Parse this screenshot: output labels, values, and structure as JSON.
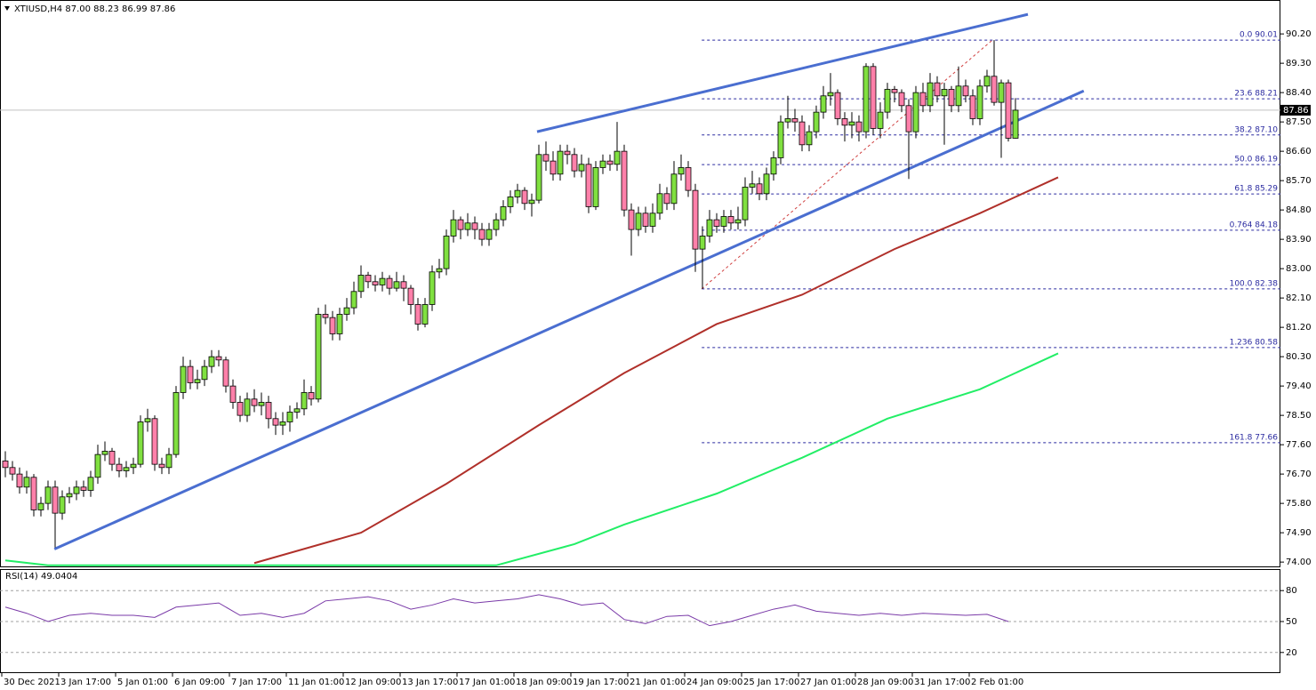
{
  "chart_data": {
    "type": "candlestick",
    "title": "XTIUSD,H4  87.00 88.23 86.99 87.86",
    "bull_color": "#80e040",
    "bear_color": "#ff80aa",
    "ylim": [
      73.84,
      91.24
    ],
    "yticks": [
      {
        "value": 90.2,
        "label": "90.20"
      },
      {
        "value": 89.3,
        "label": "89.30"
      },
      {
        "value": 88.4,
        "label": "88.40"
      },
      {
        "value": 87.5,
        "label": "87.50"
      },
      {
        "value": 86.6,
        "label": "86.60"
      },
      {
        "value": 85.7,
        "label": "85.70"
      },
      {
        "value": 84.8,
        "label": "84.80"
      },
      {
        "value": 83.9,
        "label": "83.90"
      },
      {
        "value": 83.0,
        "label": "83.00"
      },
      {
        "value": 82.1,
        "label": "82.10"
      },
      {
        "value": 81.2,
        "label": "81.20"
      },
      {
        "value": 80.3,
        "label": "80.30"
      },
      {
        "value": 79.4,
        "label": "79.40"
      },
      {
        "value": 78.5,
        "label": "78.50"
      },
      {
        "value": 77.6,
        "label": "77.60"
      },
      {
        "value": 76.7,
        "label": "76.70"
      },
      {
        "value": 75.8,
        "label": "75.80"
      },
      {
        "value": 74.9,
        "label": "74.90"
      },
      {
        "value": 74.0,
        "label": "74.00"
      }
    ],
    "last_price": 87.86,
    "xticks": [
      {
        "value": 0,
        "label": "30 Dec 2021"
      },
      {
        "value": 8,
        "label": "3 Jan 17:00"
      },
      {
        "value": 16,
        "label": "5 Jan 01:00"
      },
      {
        "value": 24,
        "label": "6 Jan 09:00"
      },
      {
        "value": 32,
        "label": "7 Jan 17:00"
      },
      {
        "value": 40,
        "label": "11 Jan 01:00"
      },
      {
        "value": 48,
        "label": "12 Jan 09:00"
      },
      {
        "value": 56,
        "label": "13 Jan 17:00"
      },
      {
        "value": 64,
        "label": "17 Jan 01:00"
      },
      {
        "value": 72,
        "label": "18 Jan 09:00"
      },
      {
        "value": 80,
        "label": "19 Jan 17:00"
      },
      {
        "value": 88,
        "label": "21 Jan 01:00"
      },
      {
        "value": 96,
        "label": "24 Jan 09:00"
      },
      {
        "value": 104,
        "label": "25 Jan 17:00"
      },
      {
        "value": 112,
        "label": "27 Jan 01:00"
      },
      {
        "value": 120,
        "label": "28 Jan 09:00"
      },
      {
        "value": 128,
        "label": "31 Jan 17:00"
      },
      {
        "value": 136,
        "label": "2 Feb 01:00"
      }
    ],
    "candles": [
      [
        77.1,
        77.4,
        76.6,
        76.9
      ],
      [
        76.9,
        77.1,
        76.5,
        76.7
      ],
      [
        76.7,
        76.9,
        76.1,
        76.3
      ],
      [
        76.3,
        76.8,
        76.1,
        76.6
      ],
      [
        76.6,
        76.7,
        75.4,
        75.6
      ],
      [
        75.6,
        76.0,
        75.4,
        75.8
      ],
      [
        75.8,
        76.5,
        75.6,
        76.3
      ],
      [
        76.3,
        76.5,
        74.45,
        75.5
      ],
      [
        75.5,
        76.2,
        75.3,
        76.0
      ],
      [
        76.0,
        76.3,
        75.8,
        76.1
      ],
      [
        76.1,
        76.5,
        75.9,
        76.3
      ],
      [
        76.3,
        76.5,
        76.0,
        76.2
      ],
      [
        76.2,
        76.8,
        76.0,
        76.6
      ],
      [
        76.6,
        77.6,
        76.4,
        77.3
      ],
      [
        77.3,
        77.7,
        77.1,
        77.4
      ],
      [
        77.4,
        77.5,
        76.8,
        77.0
      ],
      [
        77.0,
        77.2,
        76.6,
        76.8
      ],
      [
        76.8,
        77.1,
        76.6,
        76.9
      ],
      [
        76.9,
        77.2,
        76.7,
        77.0
      ],
      [
        77.0,
        78.5,
        76.9,
        78.3
      ],
      [
        78.3,
        78.7,
        78.0,
        78.4
      ],
      [
        78.4,
        78.5,
        76.8,
        77.0
      ],
      [
        77.0,
        77.2,
        76.7,
        76.9
      ],
      [
        76.9,
        77.5,
        76.7,
        77.3
      ],
      [
        77.3,
        79.4,
        77.2,
        79.2
      ],
      [
        79.2,
        80.3,
        79.0,
        80.0
      ],
      [
        80.0,
        80.2,
        79.3,
        79.5
      ],
      [
        79.5,
        79.9,
        79.3,
        79.6
      ],
      [
        79.6,
        80.2,
        79.4,
        80.0
      ],
      [
        80.0,
        80.5,
        79.8,
        80.3
      ],
      [
        80.3,
        80.5,
        80.0,
        80.2
      ],
      [
        80.2,
        80.3,
        79.2,
        79.4
      ],
      [
        79.4,
        79.6,
        78.7,
        78.9
      ],
      [
        78.9,
        79.1,
        78.3,
        78.5
      ],
      [
        78.5,
        79.2,
        78.3,
        79.0
      ],
      [
        79.0,
        79.3,
        78.6,
        78.8
      ],
      [
        78.8,
        79.2,
        78.5,
        78.9
      ],
      [
        78.9,
        79.1,
        78.1,
        78.4
      ],
      [
        78.4,
        78.6,
        77.9,
        78.2
      ],
      [
        78.2,
        78.6,
        77.9,
        78.3
      ],
      [
        78.3,
        78.8,
        78.0,
        78.6
      ],
      [
        78.6,
        78.9,
        78.4,
        78.7
      ],
      [
        78.7,
        79.6,
        78.5,
        79.2
      ],
      [
        79.2,
        79.4,
        78.8,
        79.0
      ],
      [
        79.0,
        81.8,
        78.9,
        81.6
      ],
      [
        81.6,
        81.9,
        81.3,
        81.5
      ],
      [
        81.5,
        81.7,
        80.8,
        81.0
      ],
      [
        81.0,
        81.8,
        80.8,
        81.6
      ],
      [
        81.6,
        82.1,
        81.4,
        81.8
      ],
      [
        81.8,
        82.6,
        81.6,
        82.3
      ],
      [
        82.3,
        83.1,
        82.1,
        82.8
      ],
      [
        82.8,
        82.9,
        82.4,
        82.6
      ],
      [
        82.6,
        82.8,
        82.3,
        82.5
      ],
      [
        82.5,
        82.9,
        82.3,
        82.7
      ],
      [
        82.7,
        82.8,
        82.2,
        82.4
      ],
      [
        82.4,
        82.9,
        82.3,
        82.6
      ],
      [
        82.6,
        82.8,
        82.0,
        82.4
      ],
      [
        82.4,
        82.5,
        81.6,
        81.9
      ],
      [
        81.9,
        82.1,
        81.1,
        81.3
      ],
      [
        81.3,
        82.1,
        81.2,
        81.9
      ],
      [
        81.9,
        83.1,
        81.7,
        82.9
      ],
      [
        82.9,
        83.3,
        82.7,
        83.0
      ],
      [
        83.0,
        84.2,
        82.8,
        84.0
      ],
      [
        84.0,
        84.8,
        83.8,
        84.5
      ],
      [
        84.5,
        84.6,
        83.9,
        84.2
      ],
      [
        84.2,
        84.7,
        84.0,
        84.4
      ],
      [
        84.4,
        84.6,
        83.9,
        84.2
      ],
      [
        84.2,
        84.4,
        83.7,
        83.9
      ],
      [
        83.9,
        84.4,
        83.7,
        84.2
      ],
      [
        84.2,
        84.7,
        84.0,
        84.5
      ],
      [
        84.5,
        85.1,
        84.3,
        84.9
      ],
      [
        84.9,
        85.4,
        84.7,
        85.2
      ],
      [
        85.2,
        85.6,
        85.0,
        85.4
      ],
      [
        85.4,
        85.5,
        84.8,
        85.0
      ],
      [
        85.0,
        85.3,
        84.6,
        85.1
      ],
      [
        85.1,
        86.8,
        85.0,
        86.5
      ],
      [
        86.5,
        86.9,
        86.0,
        86.3
      ],
      [
        86.3,
        86.6,
        85.7,
        85.9
      ],
      [
        85.9,
        86.8,
        85.7,
        86.6
      ],
      [
        86.6,
        86.8,
        86.2,
        86.5
      ],
      [
        86.5,
        86.7,
        85.8,
        86.0
      ],
      [
        86.0,
        86.5,
        85.8,
        86.2
      ],
      [
        86.2,
        86.4,
        84.7,
        84.9
      ],
      [
        84.9,
        86.3,
        84.8,
        86.1
      ],
      [
        86.1,
        86.5,
        85.9,
        86.3
      ],
      [
        86.3,
        86.5,
        86.0,
        86.2
      ],
      [
        86.2,
        87.5,
        86.0,
        86.6
      ],
      [
        86.6,
        86.8,
        84.6,
        84.8
      ],
      [
        84.8,
        85.0,
        83.4,
        84.2
      ],
      [
        84.2,
        84.9,
        84.0,
        84.7
      ],
      [
        84.7,
        84.9,
        84.1,
        84.3
      ],
      [
        84.3,
        85.0,
        84.1,
        84.7
      ],
      [
        84.7,
        85.6,
        84.5,
        85.3
      ],
      [
        85.3,
        85.5,
        84.8,
        85.0
      ],
      [
        85.0,
        86.3,
        84.8,
        85.9
      ],
      [
        85.9,
        86.5,
        85.7,
        86.1
      ],
      [
        86.1,
        86.3,
        85.2,
        85.4
      ],
      [
        85.4,
        85.6,
        82.9,
        83.6
      ],
      [
        83.6,
        84.3,
        82.38,
        84.0
      ],
      [
        84.0,
        84.8,
        83.8,
        84.5
      ],
      [
        84.5,
        84.7,
        84.1,
        84.3
      ],
      [
        84.3,
        84.8,
        84.1,
        84.6
      ],
      [
        84.6,
        84.8,
        84.2,
        84.4
      ],
      [
        84.4,
        84.9,
        84.2,
        84.5
      ],
      [
        84.5,
        85.8,
        84.3,
        85.5
      ],
      [
        85.5,
        86.0,
        85.3,
        85.6
      ],
      [
        85.6,
        85.8,
        85.1,
        85.3
      ],
      [
        85.3,
        86.1,
        85.1,
        85.9
      ],
      [
        85.9,
        86.6,
        85.7,
        86.4
      ],
      [
        86.4,
        87.7,
        86.2,
        87.5
      ],
      [
        87.5,
        88.3,
        87.3,
        87.6
      ],
      [
        87.6,
        87.9,
        87.2,
        87.5
      ],
      [
        87.5,
        87.7,
        86.6,
        86.8
      ],
      [
        86.8,
        87.4,
        86.6,
        87.2
      ],
      [
        87.2,
        88.0,
        87.0,
        87.8
      ],
      [
        87.8,
        88.6,
        87.6,
        88.3
      ],
      [
        88.3,
        89.0,
        88.0,
        88.4
      ],
      [
        88.4,
        88.5,
        87.4,
        87.6
      ],
      [
        87.6,
        87.8,
        86.9,
        87.4
      ],
      [
        87.4,
        87.8,
        87.0,
        87.5
      ],
      [
        87.5,
        87.7,
        86.9,
        87.2
      ],
      [
        87.2,
        89.3,
        87.0,
        89.2
      ],
      [
        89.2,
        89.3,
        87.1,
        87.3
      ],
      [
        87.3,
        88.1,
        87.0,
        87.8
      ],
      [
        87.8,
        88.7,
        87.6,
        88.5
      ],
      [
        88.5,
        88.6,
        88.1,
        88.4
      ],
      [
        88.4,
        88.5,
        87.8,
        88.0
      ],
      [
        88.0,
        88.2,
        85.75,
        87.2
      ],
      [
        87.2,
        88.6,
        87.0,
        88.4
      ],
      [
        88.4,
        88.7,
        87.8,
        88.0
      ],
      [
        88.0,
        89.0,
        87.8,
        88.7
      ],
      [
        88.7,
        88.9,
        88.1,
        88.3
      ],
      [
        88.3,
        88.7,
        86.8,
        88.5
      ],
      [
        88.5,
        88.6,
        87.8,
        88.0
      ],
      [
        88.0,
        89.2,
        87.8,
        88.6
      ],
      [
        88.6,
        88.8,
        88.1,
        88.3
      ],
      [
        88.3,
        88.5,
        87.4,
        87.6
      ],
      [
        87.6,
        88.8,
        87.4,
        88.6
      ],
      [
        88.6,
        89.1,
        88.4,
        88.9
      ],
      [
        88.9,
        90.01,
        88.0,
        88.1
      ],
      [
        88.1,
        88.8,
        86.4,
        88.7
      ],
      [
        88.7,
        88.8,
        86.9,
        87.0
      ],
      [
        87.0,
        88.23,
        86.99,
        87.86
      ]
    ],
    "moving_averages": [
      {
        "color": "#b0302a",
        "x": [
          35,
          50,
          62,
          75,
          87,
          100,
          112,
          125,
          137,
          148
        ],
        "values": [
          73.97,
          74.9,
          76.4,
          78.2,
          79.8,
          81.3,
          82.2,
          83.6,
          84.7,
          85.8
        ]
      },
      {
        "color": "#22ee66",
        "x": [
          0,
          6,
          69,
          80,
          87,
          100,
          112,
          124,
          137,
          148
        ],
        "values": [
          74.05,
          73.9,
          73.9,
          74.55,
          75.15,
          76.1,
          77.2,
          78.4,
          79.3,
          80.4
        ]
      }
    ],
    "trendlines": [
      {
        "color": "#4a6ed0",
        "x": [
          6.9,
          151.6
        ],
        "values": [
          74.4,
          88.45
        ]
      },
      {
        "color": "#4a6ed0",
        "x": [
          74.75,
          143.75
        ],
        "values": [
          87.2,
          90.8
        ]
      }
    ],
    "fib_diagonal": {
      "color": "#d04040",
      "x": [
        97.9,
        138.75
      ],
      "values": [
        82.38,
        90.01
      ]
    },
    "fib_levels": [
      {
        "value": 90.01,
        "label": "0.0 90.01"
      },
      {
        "value": 88.21,
        "label": "23.6 88.21"
      },
      {
        "value": 87.1,
        "label": "38.2 87.10"
      },
      {
        "value": 86.19,
        "label": "50.0 86.19"
      },
      {
        "value": 85.29,
        "label": "61.8 85.29"
      },
      {
        "value": 84.18,
        "label": "0.764 84.18"
      },
      {
        "value": 82.38,
        "label": "100.0 82.38"
      },
      {
        "value": 80.58,
        "label": "1.236 80.58"
      },
      {
        "value": 77.66,
        "label": "161.8 77.66"
      }
    ],
    "fib_start": 97.9,
    "rsi": {
      "title": "RSI(14) 49.0404",
      "color": "#7a3aa8",
      "ylim": [
        0,
        100
      ],
      "yticks": [
        80,
        50,
        20
      ],
      "x": [
        0,
        3,
        6,
        9,
        12,
        15,
        18,
        21,
        24,
        27,
        30,
        33,
        36,
        39,
        42,
        45,
        48,
        51,
        54,
        57,
        60,
        63,
        66,
        69,
        72,
        75,
        78,
        81,
        84,
        87,
        90,
        93,
        96,
        99,
        102,
        105,
        108,
        111,
        114,
        117,
        120,
        123,
        126,
        129,
        132,
        135,
        138,
        141
      ],
      "values": [
        64,
        58,
        50,
        56,
        58,
        56,
        56,
        54,
        64,
        66,
        68,
        56,
        58,
        54,
        58,
        70,
        72,
        74,
        70,
        62,
        66,
        72,
        68,
        70,
        72,
        76,
        72,
        66,
        68,
        52,
        48,
        55,
        56,
        46,
        50,
        56,
        62,
        66,
        60,
        58,
        56,
        58,
        56,
        58,
        57,
        56,
        57,
        50
      ]
    }
  }
}
